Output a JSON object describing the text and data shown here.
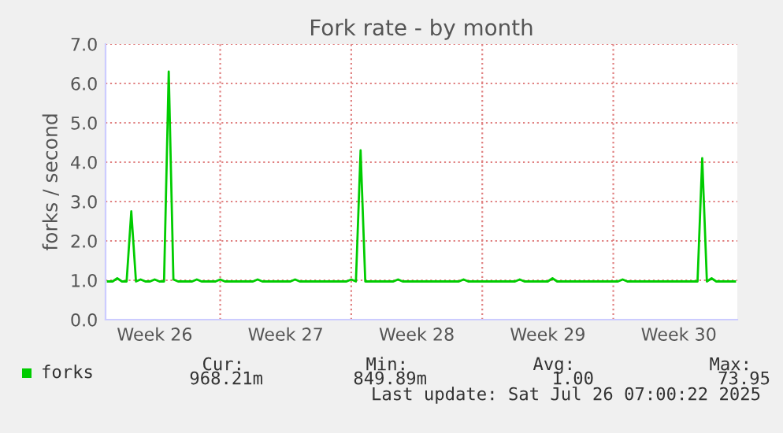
{
  "chart_data": {
    "type": "line",
    "title": "Fork rate - by month",
    "ylabel": "forks / second",
    "categories": [
      null,
      null,
      null,
      null,
      null,
      null,
      null,
      null,
      null,
      null,
      "Week 26",
      null,
      null,
      null,
      null,
      null,
      null,
      null,
      null,
      null,
      null,
      null,
      null,
      null,
      null,
      null,
      null,
      null,
      null,
      null,
      null,
      null,
      null,
      null,
      null,
      null,
      null,
      null,
      "Week 27",
      null,
      null,
      null,
      null,
      null,
      null,
      null,
      null,
      null,
      null,
      null,
      null,
      null,
      null,
      null,
      null,
      null,
      null,
      null,
      null,
      null,
      null,
      null,
      null,
      null,
      null,
      null,
      "Week 28",
      null,
      null,
      null,
      null,
      null,
      null,
      null,
      null,
      null,
      null,
      null,
      null,
      null,
      null,
      null,
      null,
      null,
      null,
      null,
      null,
      null,
      null,
      null,
      null,
      null,
      null,
      null,
      "Week 29",
      null,
      null,
      null,
      null,
      null,
      null,
      null,
      null,
      null,
      null,
      null,
      null,
      null,
      null,
      null,
      null,
      null,
      null,
      null,
      null,
      null,
      null,
      null,
      null,
      null,
      null,
      null,
      "Week 30",
      null,
      null,
      null,
      null,
      null,
      null,
      null,
      null,
      null,
      null,
      null,
      null
    ],
    "series": [
      {
        "name": "forks",
        "color": "#00cc00",
        "values": [
          0.97,
          0.97,
          1.05,
          0.97,
          0.97,
          2.75,
          0.97,
          1.02,
          0.97,
          0.97,
          1.02,
          0.97,
          0.97,
          6.3,
          1.02,
          0.97,
          0.97,
          0.97,
          0.97,
          1.02,
          0.97,
          0.97,
          0.97,
          0.97,
          1.02,
          0.97,
          0.97,
          0.97,
          0.97,
          0.97,
          0.97,
          0.97,
          1.02,
          0.97,
          0.97,
          0.97,
          0.97,
          0.97,
          0.97,
          0.97,
          1.02,
          0.97,
          0.97,
          0.97,
          0.97,
          0.97,
          0.97,
          0.97,
          0.97,
          0.97,
          0.97,
          0.97,
          1.02,
          0.97,
          4.3,
          0.97,
          0.97,
          0.97,
          0.97,
          0.97,
          0.97,
          0.97,
          1.02,
          0.97,
          0.97,
          0.97,
          0.97,
          0.97,
          0.97,
          0.97,
          0.97,
          0.97,
          0.97,
          0.97,
          0.97,
          0.97,
          1.02,
          0.97,
          0.97,
          0.97,
          0.97,
          0.97,
          0.97,
          0.97,
          0.97,
          0.97,
          0.97,
          0.97,
          1.02,
          0.97,
          0.97,
          0.97,
          0.97,
          0.97,
          0.97,
          1.05,
          0.97,
          0.97,
          0.97,
          0.97,
          0.97,
          0.97,
          0.97,
          0.97,
          0.97,
          0.97,
          0.97,
          0.97,
          0.97,
          0.97,
          1.02,
          0.97,
          0.97,
          0.97,
          0.97,
          0.97,
          0.97,
          0.97,
          0.97,
          0.97,
          0.97,
          0.97,
          0.97,
          0.97,
          0.97,
          0.97,
          0.97,
          4.1,
          0.97,
          1.05,
          0.97,
          0.97,
          0.97,
          0.97,
          0.97
        ]
      }
    ],
    "ylim": [
      0,
      7
    ],
    "yticks": [
      {
        "value": 0,
        "label": "0.0"
      },
      {
        "value": 1,
        "label": "1.0"
      },
      {
        "value": 2,
        "label": "2.0"
      },
      {
        "value": 3,
        "label": "3.0"
      },
      {
        "value": 4,
        "label": "4.0"
      },
      {
        "value": 5,
        "label": "5.0"
      },
      {
        "value": 6,
        "label": "6.0"
      },
      {
        "value": 7,
        "label": "7.0"
      }
    ],
    "grid": true,
    "legend": "bottom left",
    "marker": "none",
    "line_style": "solid",
    "annotations": [
      "Cur:",
      "Min:",
      "Avg:",
      "Max:",
      "968.21m",
      "849.89m",
      "1.00",
      "73.95",
      "Last update: Sat Jul 26 07:00:22 2025"
    ]
  }
}
